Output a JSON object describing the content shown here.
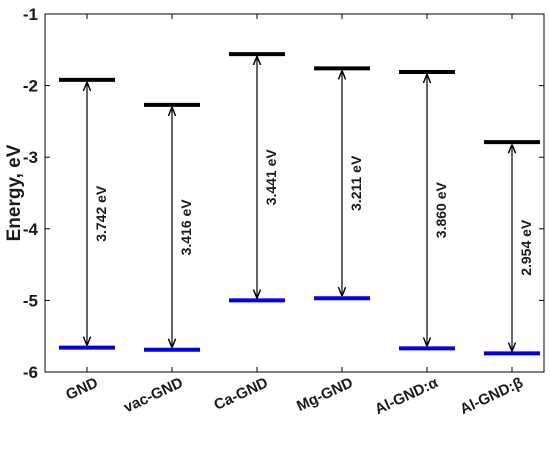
{
  "chart_data": {
    "type": "energy-level-diagram",
    "title": "",
    "xlabel": "",
    "ylabel": "Energy, eV",
    "ylim": [
      -6,
      -1
    ],
    "yticks": [
      -6,
      -5,
      -4,
      -3,
      -2,
      -1
    ],
    "grid": false,
    "categories": [
      "GND",
      "vac-GND",
      "Ca-GND",
      "Mg-GND",
      "Al-GND:α",
      "Al-GND:β"
    ],
    "series": [
      {
        "values": [
          -1.92,
          -2.27,
          -1.56,
          -1.76,
          -1.81,
          -2.79
        ],
        "color": "#000000"
      },
      {
        "values": [
          -5.66,
          -5.69,
          -5.0,
          -4.97,
          -5.67,
          -5.74
        ],
        "color": "#0000e6"
      }
    ],
    "gap_labels": [
      "3.742 eV",
      "3.416 eV",
      "3.441 eV",
      "3.211 eV",
      "3.860 eV",
      "2.954 eV"
    ]
  }
}
